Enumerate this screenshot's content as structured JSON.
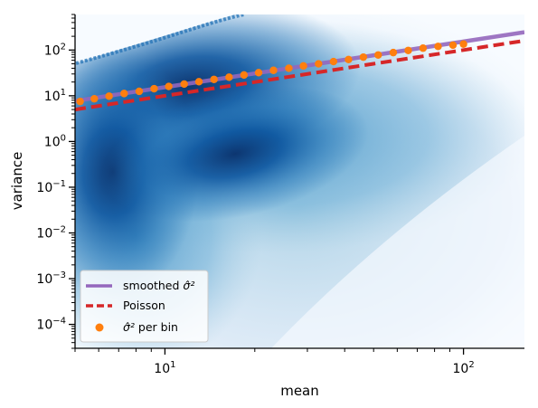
{
  "chart_data": {
    "type": "scatter",
    "subtype": "hexbin-density-with-trend-lines",
    "title": "",
    "xlabel": "mean",
    "ylabel": "variance",
    "xscale": "log",
    "yscale": "log",
    "xlim": [
      5,
      160
    ],
    "ylim": [
      3e-05,
      600
    ],
    "grid": false,
    "legend_position": "lower-left",
    "x_ticks": [
      {
        "value": 10,
        "base": "10",
        "exp": "1"
      },
      {
        "value": 100,
        "base": "10",
        "exp": "2"
      }
    ],
    "y_ticks": [
      {
        "value": 0.0001,
        "base": "10",
        "exp": "−4"
      },
      {
        "value": 0.001,
        "base": "10",
        "exp": "−3"
      },
      {
        "value": 0.01,
        "base": "10",
        "exp": "−2"
      },
      {
        "value": 0.1,
        "base": "10",
        "exp": "−1"
      },
      {
        "value": 1,
        "base": "10",
        "exp": "0"
      },
      {
        "value": 10,
        "base": "10",
        "exp": "1"
      },
      {
        "value": 100,
        "base": "10",
        "exp": "2"
      }
    ],
    "density_colormap": [
      "#f7fbff",
      "#c6dbef",
      "#6baed6",
      "#2171b5",
      "#08306b"
    ],
    "series": [
      {
        "name": "smoothed σ̂²",
        "legend_label": "smoothed ",
        "legend_symbol": "σ̂²",
        "kind": "line",
        "color": "#9467bd",
        "x": [
          5,
          7,
          10,
          15,
          20,
          30,
          50,
          70,
          100,
          160
        ],
        "y": [
          7.7,
          10.8,
          15.4,
          23.1,
          30.8,
          46,
          77,
          108,
          154,
          246
        ]
      },
      {
        "name": "Poisson",
        "legend_label": "Poisson",
        "kind": "dashed-line",
        "color": "#d62728",
        "x": [
          5,
          10,
          20,
          50,
          100,
          160
        ],
        "y": [
          5,
          10,
          20,
          50,
          100,
          160
        ]
      },
      {
        "name": "σ̂² per bin",
        "legend_label": " per bin",
        "legend_symbol": "σ̂²",
        "kind": "points",
        "color": "#ff7f0e",
        "x": [
          5.2,
          5.8,
          6.5,
          7.3,
          8.2,
          9.2,
          10.3,
          11.6,
          13,
          14.6,
          16.4,
          18.4,
          20.6,
          23.1,
          26,
          29.1,
          32.7,
          36.7,
          41.2,
          46.2,
          51.8,
          58.2,
          65.3,
          73.2,
          82.2,
          92.2,
          100
        ],
        "y": [
          7.5,
          8.6,
          9.8,
          11.2,
          12.5,
          14.3,
          16,
          18,
          20.3,
          22.8,
          25.5,
          28.5,
          32,
          36,
          40,
          45,
          50,
          56,
          62,
          70,
          78,
          88,
          98,
          110,
          120,
          128,
          135
        ]
      }
    ]
  }
}
